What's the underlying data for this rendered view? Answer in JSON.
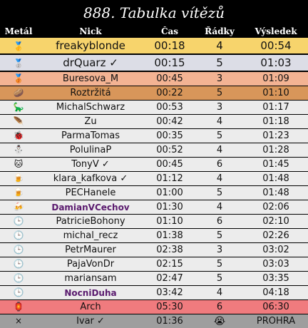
{
  "title": "888. Tabulka vítězů",
  "headers": {
    "medal": "Metál",
    "nick": "Nick",
    "time": "Čas",
    "rows": "Řádky",
    "result": "Výsledek"
  },
  "entries": [
    {
      "icon": "🥇",
      "icon_name": "gold-medal-icon",
      "nick": "freakyblonde",
      "time": "00:18",
      "rows": "4",
      "result": "00:54",
      "bg": "#f7d46c",
      "big": true,
      "bold": false
    },
    {
      "icon": "🥈",
      "icon_name": "silver-medal-icon",
      "nick": "drQuarz ✓",
      "time": "00:15",
      "rows": "5",
      "result": "01:03",
      "bg": "#dcdde6",
      "big": true,
      "bold": false
    },
    {
      "icon": "🥉",
      "icon_name": "bronze-medal-icon",
      "nick": "Buresova_M",
      "time": "00:45",
      "rows": "3",
      "result": "01:09",
      "bg": "#f3b393",
      "big": false,
      "bold": false
    },
    {
      "icon": "🥔",
      "icon_name": "potato-icon",
      "nick": "Roztržitá",
      "time": "00:22",
      "rows": "5",
      "result": "01:10",
      "bg": "#d8965a",
      "big": false,
      "bold": false
    },
    {
      "icon": "🦕",
      "icon_name": "dinosaur-icon",
      "nick": "MichalSchwarz",
      "time": "00:53",
      "rows": "3",
      "result": "01:17",
      "bg": "#ececec",
      "big": false,
      "bold": false
    },
    {
      "icon": "🪶",
      "icon_name": "feather-icon",
      "nick": "Zu",
      "time": "00:42",
      "rows": "4",
      "result": "01:18",
      "bg": "#ececec",
      "big": false,
      "bold": false
    },
    {
      "icon": "🐞",
      "icon_name": "ladybug-icon",
      "nick": "ParmaTomas",
      "time": "00:35",
      "rows": "5",
      "result": "01:23",
      "bg": "#ececec",
      "big": false,
      "bold": false
    },
    {
      "icon": "⛄",
      "icon_name": "snowman-icon",
      "nick": "PolulinaP",
      "time": "00:52",
      "rows": "4",
      "result": "01:28",
      "bg": "#ececec",
      "big": false,
      "bold": false
    },
    {
      "icon": "🐱",
      "icon_name": "cat-face-icon",
      "nick": "TonyV ✓",
      "time": "00:45",
      "rows": "6",
      "result": "01:45",
      "bg": "#ececec",
      "big": false,
      "bold": false
    },
    {
      "icon": "🍺",
      "icon_name": "beer-icon",
      "nick": "klara_kafkova ✓",
      "time": "01:12",
      "rows": "4",
      "result": "01:48",
      "bg": "#ececec",
      "big": false,
      "bold": false
    },
    {
      "icon": "🍺",
      "icon_name": "beer-icon",
      "nick": "PECHanele",
      "time": "01:00",
      "rows": "5",
      "result": "01:48",
      "bg": "#ececec",
      "big": false,
      "bold": false
    },
    {
      "icon": "🍻",
      "icon_name": "beers-icon",
      "nick": "DamianVCechov",
      "time": "01:30",
      "rows": "4",
      "result": "02:06",
      "bg": "#ececec",
      "big": false,
      "bold": true
    },
    {
      "icon": "🕒",
      "icon_name": "clock-icon",
      "nick": "PatricieBohony",
      "time": "01:10",
      "rows": "6",
      "result": "02:10",
      "bg": "#ececec",
      "big": false,
      "bold": false
    },
    {
      "icon": "🕒",
      "icon_name": "clock-icon",
      "nick": "michal_recz",
      "time": "01:38",
      "rows": "5",
      "result": "02:26",
      "bg": "#ececec",
      "big": false,
      "bold": false
    },
    {
      "icon": "🕒",
      "icon_name": "clock-icon",
      "nick": "PetrMaurer",
      "time": "02:38",
      "rows": "3",
      "result": "03:02",
      "bg": "#ececec",
      "big": false,
      "bold": false
    },
    {
      "icon": "🕒",
      "icon_name": "clock-icon",
      "nick": "PajaVonDr",
      "time": "02:15",
      "rows": "5",
      "result": "03:03",
      "bg": "#ececec",
      "big": false,
      "bold": false
    },
    {
      "icon": "🕒",
      "icon_name": "clock-icon",
      "nick": "mariansam",
      "time": "02:47",
      "rows": "5",
      "result": "03:35",
      "bg": "#ececec",
      "big": false,
      "bold": false
    },
    {
      "icon": "🕒",
      "icon_name": "clock-icon",
      "nick": "NocniDuha",
      "time": "03:42",
      "rows": "4",
      "result": "04:18",
      "bg": "#ececec",
      "big": false,
      "bold": true
    },
    {
      "icon": "🏮",
      "icon_name": "lantern-icon",
      "nick": "Arch",
      "time": "05:30",
      "rows": "6",
      "result": "06:30",
      "bg": "#f07b7e",
      "big": false,
      "bold": false
    },
    {
      "icon": "×",
      "icon_name": "cross-icon",
      "nick": "Ivar ✓",
      "time": "01:36",
      "rows": "😭",
      "result": "PROHRA",
      "bg": "#9e9e9e",
      "big": false,
      "bold": false
    }
  ]
}
